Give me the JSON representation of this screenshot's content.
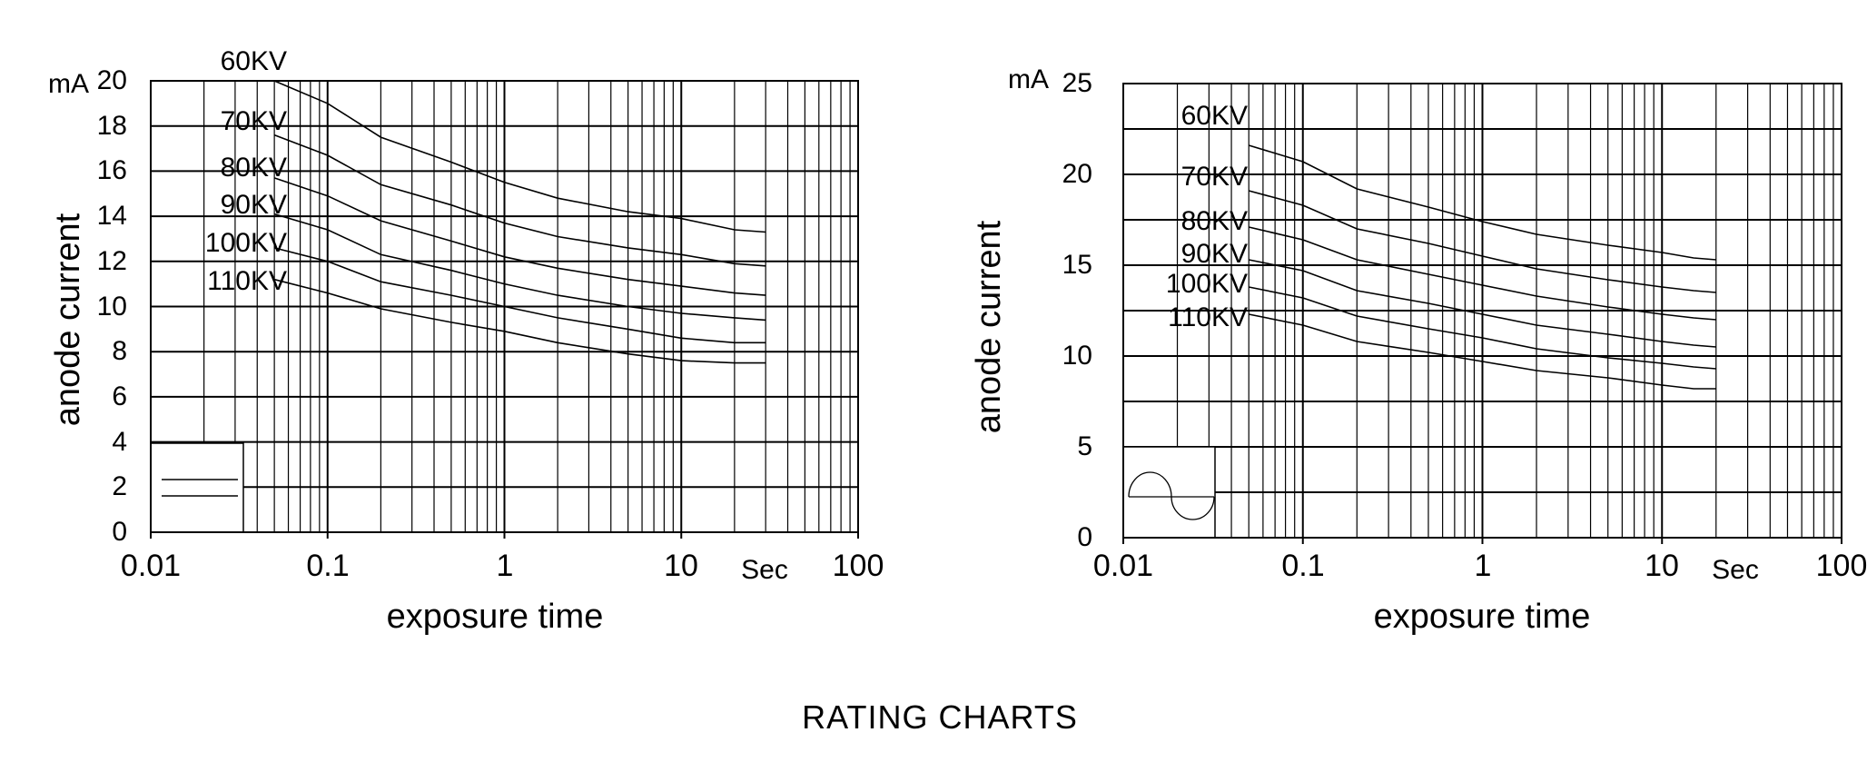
{
  "title": "RATING CHARTS",
  "chart_data": [
    {
      "type": "line",
      "position": "left",
      "xscale": "log",
      "xlim": [
        0.01,
        100
      ],
      "ylim": [
        0,
        20
      ],
      "grid": true,
      "xlabel": "exposure time",
      "x_unit_label": "Sec",
      "ylabel": "anode current",
      "y_unit": "mA",
      "x_tick_labels": [
        "0.01",
        "0.1",
        "1",
        "10",
        "100"
      ],
      "x_tick_values": [
        0.01,
        0.1,
        1,
        10,
        100
      ],
      "y_grid_step": 2,
      "y_tick_labels": [
        "20",
        "18",
        "16",
        "14",
        "12",
        "10",
        "8",
        "6",
        "4",
        "2",
        "0"
      ],
      "y_tick_values": [
        20,
        18,
        16,
        14,
        12,
        10,
        8,
        6,
        4,
        2,
        0
      ],
      "waveform_icon": "dc-waveform-icon",
      "x": [
        0.05,
        0.1,
        0.2,
        0.5,
        1,
        2,
        5,
        10,
        20,
        30
      ],
      "series": [
        {
          "name": "60KV",
          "values": [
            20.0,
            19.0,
            17.5,
            16.4,
            15.5,
            14.8,
            14.2,
            13.9,
            13.4,
            13.3
          ]
        },
        {
          "name": "70KV",
          "values": [
            17.6,
            16.7,
            15.4,
            14.5,
            13.7,
            13.1,
            12.6,
            12.3,
            11.9,
            11.8
          ]
        },
        {
          "name": "80KV",
          "values": [
            15.7,
            14.9,
            13.8,
            12.9,
            12.2,
            11.7,
            11.2,
            10.9,
            10.6,
            10.5
          ]
        },
        {
          "name": "90KV",
          "values": [
            14.1,
            13.4,
            12.3,
            11.6,
            11.0,
            10.5,
            10.0,
            9.7,
            9.5,
            9.4
          ]
        },
        {
          "name": "100KV",
          "values": [
            12.6,
            12.0,
            11.1,
            10.5,
            10.0,
            9.5,
            9.0,
            8.6,
            8.4,
            8.4
          ]
        },
        {
          "name": "110KV",
          "values": [
            11.2,
            10.6,
            9.9,
            9.3,
            8.9,
            8.4,
            7.9,
            7.6,
            7.5,
            7.5
          ]
        }
      ]
    },
    {
      "type": "line",
      "position": "right",
      "xscale": "log",
      "xlim": [
        0.01,
        100
      ],
      "ylim": [
        0,
        25
      ],
      "grid": true,
      "xlabel": "exposure time",
      "x_unit_label": "Sec",
      "ylabel": "anode current",
      "y_unit": "mA",
      "x_tick_labels": [
        "0.01",
        "0.1",
        "1",
        "10",
        "100"
      ],
      "x_tick_values": [
        0.01,
        0.1,
        1,
        10,
        100
      ],
      "y_grid_step": 2.5,
      "y_tick_labels": [
        "25",
        "20",
        "15",
        "10",
        "5",
        "0"
      ],
      "y_tick_values": [
        25,
        20,
        15,
        10,
        5,
        0
      ],
      "waveform_icon": "ac-waveform-icon",
      "x": [
        0.05,
        0.1,
        0.2,
        0.5,
        1,
        2,
        5,
        10,
        15,
        20
      ],
      "series": [
        {
          "name": "60KV",
          "values": [
            21.6,
            20.7,
            19.2,
            18.2,
            17.4,
            16.7,
            16.1,
            15.7,
            15.4,
            15.3
          ]
        },
        {
          "name": "70KV",
          "values": [
            19.1,
            18.3,
            17.0,
            16.2,
            15.5,
            14.8,
            14.2,
            13.8,
            13.6,
            13.5
          ]
        },
        {
          "name": "80KV",
          "values": [
            17.1,
            16.4,
            15.3,
            14.5,
            13.9,
            13.3,
            12.7,
            12.3,
            12.1,
            12.0
          ]
        },
        {
          "name": "90KV",
          "values": [
            15.3,
            14.7,
            13.6,
            12.9,
            12.3,
            11.7,
            11.2,
            10.8,
            10.6,
            10.5
          ]
        },
        {
          "name": "100KV",
          "values": [
            13.8,
            13.2,
            12.2,
            11.5,
            11.0,
            10.4,
            9.9,
            9.6,
            9.4,
            9.3
          ]
        },
        {
          "name": "110KV",
          "values": [
            12.3,
            11.7,
            10.8,
            10.2,
            9.7,
            9.2,
            8.8,
            8.4,
            8.2,
            8.2
          ]
        }
      ]
    }
  ]
}
